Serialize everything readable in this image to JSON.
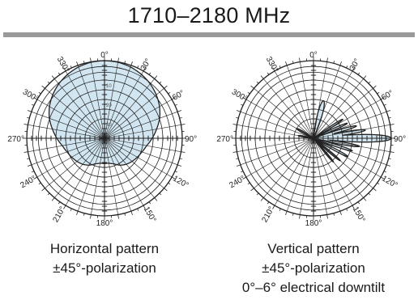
{
  "title": "1710–2180 MHz",
  "colors": {
    "fill": "#d2e6f1",
    "line": "#222222",
    "rule": "#9a9a9a"
  },
  "captions": {
    "horizontal": [
      "Horizontal pattern",
      "±45°-polarization"
    ],
    "vertical": [
      "Vertical pattern",
      "±45°-polarization",
      "0°–6° electrical downtilt"
    ]
  },
  "chart_data": [
    {
      "type": "polar",
      "title": "",
      "angle_labels": [
        "0°",
        "30°",
        "60°",
        "90°",
        "120°",
        "150°",
        "180°",
        "210°",
        "240°",
        "270°",
        "300°",
        "330°"
      ],
      "angle_values_deg": [
        0,
        30,
        60,
        90,
        120,
        150,
        180,
        210,
        240,
        270,
        300,
        330
      ],
      "radial_labels": [
        "10",
        "20",
        "30"
      ],
      "radial_label_values_db": [
        -10,
        -20,
        -30
      ],
      "rlim_db": [
        -40,
        0
      ],
      "grid_rings_db": [
        0,
        -3,
        -6,
        -10,
        -15,
        -20,
        -25,
        -30,
        -40
      ],
      "grid": true,
      "series": [
        {
          "fill": "#d2e6f1",
          "angles_deg": [
            0,
            10,
            20,
            30,
            40,
            50,
            60,
            70,
            80,
            90,
            100,
            110,
            120,
            130,
            140,
            150,
            160,
            170,
            180,
            190,
            200,
            210,
            220,
            230,
            240,
            250,
            260,
            270,
            280,
            290,
            300,
            310,
            320,
            330,
            340,
            350
          ],
          "values_db": [
            0,
            -0.2,
            -0.9,
            -2,
            -3.4,
            -5.2,
            -7.3,
            -9.8,
            -12.8,
            -15.5,
            -18,
            -19.5,
            -20.5,
            -21.5,
            -22.5,
            -24,
            -26,
            -27,
            -27,
            -27,
            -26,
            -24,
            -22.5,
            -21.5,
            -20.5,
            -19.5,
            -18,
            -15.5,
            -12.8,
            -9.8,
            -7.3,
            -5.2,
            -3.4,
            -2,
            -0.9,
            -0.2
          ]
        }
      ]
    },
    {
      "type": "polar",
      "title": "",
      "angle_labels": [
        "0°",
        "30°",
        "60°",
        "90°",
        "120°",
        "150°",
        "180°",
        "210°",
        "240°",
        "270°",
        "300°",
        "330°"
      ],
      "angle_values_deg": [
        0,
        30,
        60,
        90,
        120,
        150,
        180,
        210,
        240,
        270,
        300,
        330
      ],
      "rlim_db": [
        -40,
        0
      ],
      "grid_rings_db": [
        0,
        -3,
        -6,
        -10,
        -15,
        -20,
        -25,
        -30,
        -40
      ],
      "grid": true,
      "series": [
        {
          "fill": "#d2e6f1",
          "lobes": [
            {
              "angle_deg": 90,
              "peak_db": 0,
              "width_deg": 4
            },
            {
              "angle_deg": 81,
              "peak_db": -13,
              "width_deg": 3
            },
            {
              "angle_deg": 74,
              "peak_db": -17,
              "width_deg": 3
            },
            {
              "angle_deg": 66,
              "peak_db": -21,
              "width_deg": 3
            },
            {
              "angle_deg": 57,
              "peak_db": -22,
              "width_deg": 3
            },
            {
              "angle_deg": 100,
              "peak_db": -16,
              "width_deg": 3
            },
            {
              "angle_deg": 108,
              "peak_db": -19,
              "width_deg": 3
            },
            {
              "angle_deg": 118,
              "peak_db": -20,
              "width_deg": 3
            },
            {
              "angle_deg": 130,
              "peak_db": -22,
              "width_deg": 3
            },
            {
              "angle_deg": 140,
              "peak_db": -24,
              "width_deg": 3
            },
            {
              "angle_deg": 15,
              "peak_db": -20,
              "width_deg": 7
            },
            {
              "angle_deg": 300,
              "peak_db": -30,
              "width_deg": 7
            },
            {
              "angle_deg": 280,
              "peak_db": -32,
              "width_deg": 6
            }
          ]
        }
      ]
    }
  ]
}
